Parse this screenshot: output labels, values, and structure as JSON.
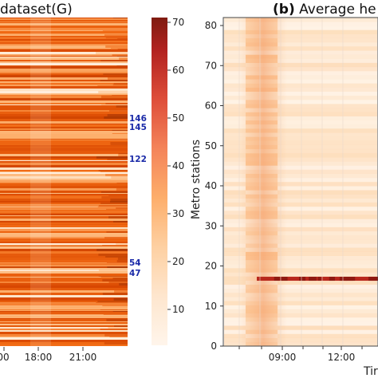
{
  "chart_data": [
    {
      "type": "heatmap",
      "title_visible": "dataset(G)",
      "xtick_labels": [
        "00",
        "18:00",
        "21:00"
      ],
      "station_annotations": [
        "146",
        "145",
        "122",
        "54",
        "47"
      ],
      "colorbar": {
        "range": [
          0,
          70
        ],
        "ticks": [
          "10",
          "20",
          "30",
          "40",
          "50",
          "60",
          "70"
        ]
      },
      "colormap": [
        "#fff5eb",
        "#fdd0a2",
        "#fdae6b",
        "#f16913",
        "#d94801",
        "#a63603",
        "#7f2704"
      ]
    },
    {
      "type": "heatmap",
      "panel_letter": "(b)",
      "title_visible": "Average he",
      "ylabel": "Metro stations",
      "xlabel_visible": "Tir",
      "ylim": [
        0,
        80
      ],
      "yticks": [
        "0",
        "10",
        "20",
        "30",
        "40",
        "50",
        "60",
        "70",
        "80"
      ],
      "xtick_labels": [
        "09:00",
        "12:00"
      ],
      "hotspot_station": 16
    }
  ]
}
